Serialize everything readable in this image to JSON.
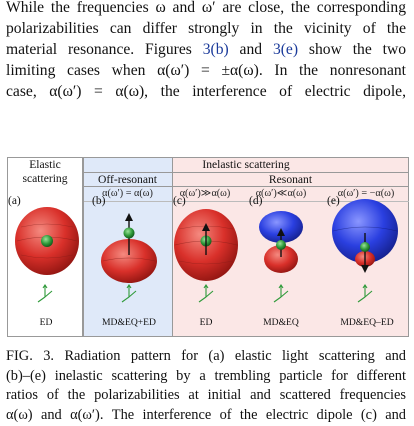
{
  "paragraph": {
    "line1": "While the frequencies ω and ω′ are close, the corresponding",
    "line2": "polarizabilities can differ strongly in the vicinity of the",
    "line3_a": "material resonance. Figures ",
    "line3_ref1": "3(b)",
    "line3_b": " and ",
    "line3_ref2": "3(e)",
    "line3_c": " show the two",
    "line4": "limiting cases when α(ω′) = ±α(ω). In the nonresonant",
    "line5": "case,  α(ω′) = α(ω),  the  interference  of  electric  dipole,"
  },
  "figure": {
    "elastic_header": [
      "Elastic",
      "scattering"
    ],
    "inelastic_header": "Inelastic scattering",
    "off_resonant_header": "Off-resonant",
    "resonant_header": "Resonant",
    "panels": [
      {
        "label": "(a)",
        "condition": "",
        "bottom_label": "ED",
        "lobe_color": "#d9302a"
      },
      {
        "label": "(b)",
        "condition": "α(ω′) = α(ω)",
        "bottom_label": "MD&EQ+ED",
        "lobe_color": "#d9302a"
      },
      {
        "label": "(c)",
        "condition": "α(ω′)≫α(ω)",
        "bottom_label": "ED",
        "lobe_color": "#d9302a"
      },
      {
        "label": "(d)",
        "condition": "α(ω′)≪α(ω)",
        "bottom_label": "MD&EQ",
        "lobe_color": "#2a3fe0"
      },
      {
        "label": "(e)",
        "condition": "α(ω′) = −α(ω)",
        "bottom_label": "MD&EQ–ED",
        "lobe_color": "#2a3fe0"
      }
    ],
    "colors": {
      "off_resonant_bg": "#dfe9f9",
      "resonant_bg": "#fbe7e6",
      "red_lobe": "#d9302a",
      "blue_lobe": "#2a3fe0",
      "particle": "#2f9a3a"
    }
  },
  "caption": {
    "line1": "FIG. 3.   Radiation pattern for (a) elastic light scattering and",
    "line2": "(b)–(e) inelastic scattering by a trembling particle for different",
    "line3": "ratios of the polarizabilities at initial and scattered frequencies",
    "line4": "α(ω) and α(ω′). The interference of the electric dipole (c) and"
  }
}
